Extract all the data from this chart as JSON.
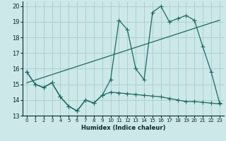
{
  "bg_color": "#cce8e8",
  "grid_color": "#aacccc",
  "line_color": "#1a6b60",
  "xlabel": "Humidex (Indice chaleur)",
  "xlim": [
    -0.5,
    23.5
  ],
  "ylim": [
    13,
    20.3
  ],
  "yticks": [
    13,
    14,
    15,
    16,
    17,
    18,
    19,
    20
  ],
  "xticks": [
    0,
    1,
    2,
    3,
    4,
    5,
    6,
    7,
    8,
    9,
    10,
    11,
    12,
    13,
    14,
    15,
    16,
    17,
    18,
    19,
    20,
    21,
    22,
    23
  ],
  "line1_x": [
    0,
    1,
    2,
    3,
    4,
    5,
    6,
    7,
    8,
    9,
    10,
    11,
    12,
    13,
    14,
    15,
    16,
    17,
    18,
    19,
    20,
    21,
    22,
    23
  ],
  "line1_y": [
    15.8,
    15.0,
    14.8,
    15.1,
    14.2,
    13.6,
    13.3,
    14.0,
    13.8,
    14.3,
    15.3,
    19.1,
    18.5,
    16.0,
    15.3,
    19.6,
    20.0,
    19.0,
    19.2,
    19.4,
    19.1,
    17.4,
    15.8,
    13.8
  ],
  "line2_x": [
    0,
    23
  ],
  "line2_y": [
    15.1,
    19.1
  ],
  "line3_x": [
    0,
    1,
    2,
    3,
    4,
    5,
    6,
    7,
    8,
    9,
    10,
    11,
    12,
    13,
    14,
    15,
    16,
    17,
    18,
    19,
    20,
    21,
    22,
    23
  ],
  "line3_y": [
    15.8,
    15.0,
    14.8,
    15.1,
    14.2,
    13.6,
    13.3,
    14.0,
    13.8,
    14.3,
    14.5,
    14.45,
    14.4,
    14.35,
    14.3,
    14.25,
    14.2,
    14.1,
    14.0,
    13.9,
    13.9,
    13.85,
    13.8,
    13.75
  ]
}
